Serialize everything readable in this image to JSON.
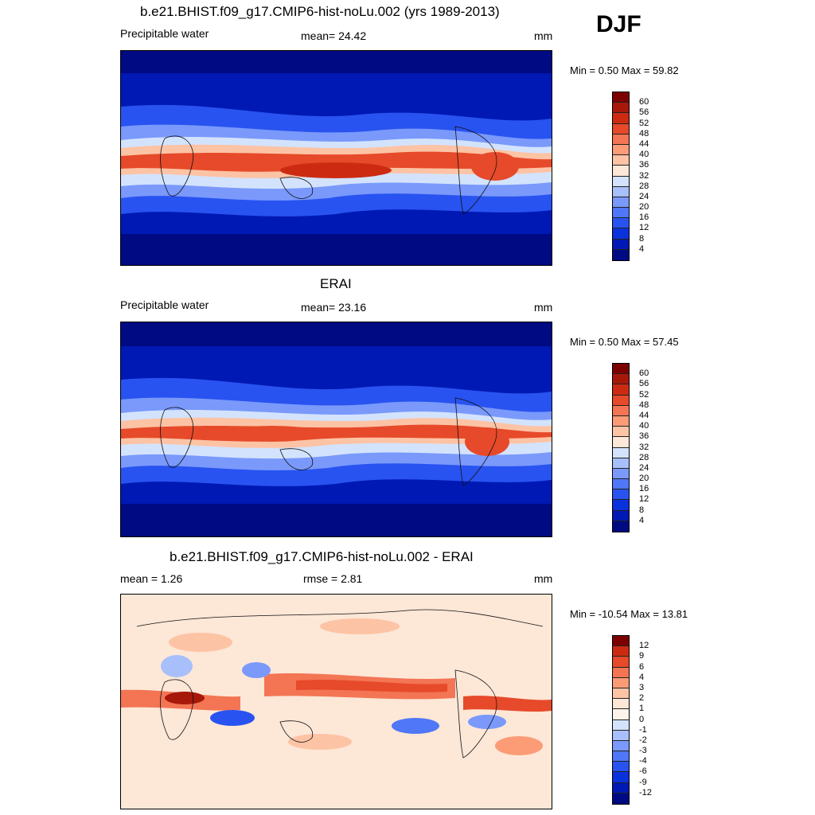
{
  "season": "DJF",
  "units": "mm",
  "panels": [
    {
      "title": "b.e21.BHIST.f09_g17.CMIP6-hist-noLu.002 (yrs 1989-2013)",
      "left_label": "Precipitable water",
      "center_label": "mean=  24.42",
      "units": "mm",
      "minmax": "Min =   0.50 Max =  59.82",
      "colorbar_ticks": [
        "60",
        "56",
        "52",
        "48",
        "44",
        "40",
        "36",
        "32",
        "28",
        "24",
        "20",
        "16",
        "12",
        "8",
        "4"
      ]
    },
    {
      "title": "ERAI",
      "left_label": "Precipitable water",
      "center_label": "mean=  23.16",
      "units": "mm",
      "minmax": "Min =   0.50 Max =  57.45",
      "colorbar_ticks": [
        "60",
        "56",
        "52",
        "48",
        "44",
        "40",
        "36",
        "32",
        "28",
        "24",
        "20",
        "16",
        "12",
        "8",
        "4"
      ]
    },
    {
      "title": "b.e21.BHIST.f09_g17.CMIP6-hist-noLu.002 - ERAI",
      "left_label": "mean =   1.26",
      "center_label": "rmse =   2.81",
      "units": "mm",
      "minmax": "Min = -10.54 Max =  13.81",
      "colorbar_ticks": [
        "12",
        "9",
        "6",
        "4",
        "3",
        "2",
        "1",
        "0",
        "-1",
        "-2",
        "-3",
        "-4",
        "-6",
        "-9",
        "-12"
      ]
    }
  ],
  "palettes": {
    "abs": [
      "#000a82",
      "#0019b4",
      "#0a32dc",
      "#2853f0",
      "#4f77f7",
      "#7a99fb",
      "#a7bffb",
      "#d3e3fd",
      "#fde7d7",
      "#fdc3a5",
      "#fb9c77",
      "#f37554",
      "#e64a2a",
      "#cc2b12",
      "#a8180a",
      "#7d0000"
    ],
    "diff": [
      "#000a82",
      "#0019b4",
      "#0a32dc",
      "#2853f0",
      "#4f77f7",
      "#7a99fb",
      "#a7bffb",
      "#d3e3fd",
      "#fff4ec",
      "#fde7d7",
      "#fdc3a5",
      "#fb9c77",
      "#f37554",
      "#e64a2a",
      "#cc2b12",
      "#7d0000"
    ]
  }
}
